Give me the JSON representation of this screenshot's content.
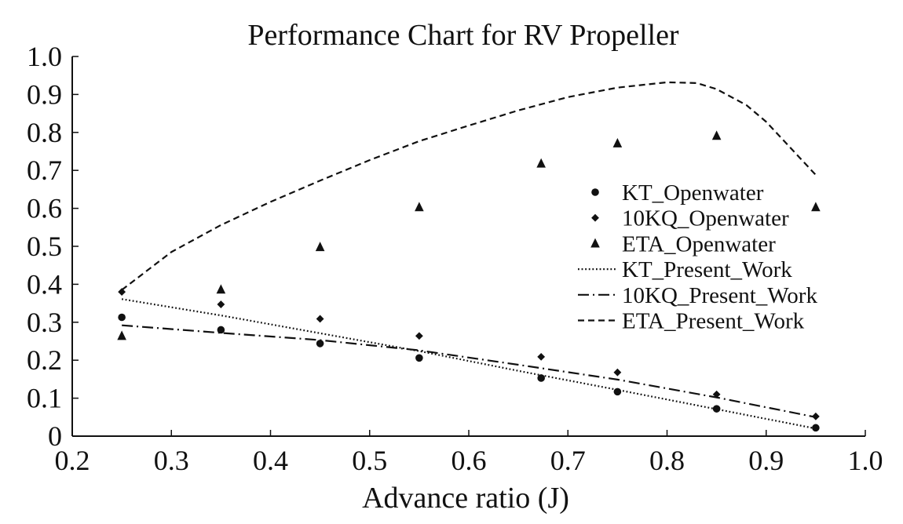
{
  "chart_data": {
    "type": "scatter",
    "title": "Performance Chart for RV Propeller",
    "xlabel": "Advance ratio (J)",
    "ylabel": "",
    "xlim": [
      0.2,
      1.0
    ],
    "ylim": [
      0.0,
      1.0
    ],
    "grid": false,
    "legend_position": "right",
    "x_ticks": [
      0.2,
      0.3,
      0.4,
      0.5,
      0.6,
      0.7,
      0.8,
      0.9,
      1.0
    ],
    "x_tick_labels": [
      "0.2",
      "0.3",
      "0.4",
      "0.5",
      "0.6",
      "0.7",
      "0.8",
      "0.9",
      "1.0"
    ],
    "y_ticks": [
      0.0,
      0.1,
      0.2,
      0.3,
      0.4,
      0.5,
      0.6,
      0.7,
      0.8,
      0.9,
      1.0
    ],
    "y_tick_labels": [
      "0",
      "0.1",
      "0.2",
      "0.3",
      "0.4",
      "0.5",
      "0.6",
      "0.7",
      "0.8",
      "0.9",
      "1.0"
    ],
    "series": [
      {
        "name": "KT_Openwater",
        "kind": "scatter",
        "marker": "circle",
        "x": [
          0.25,
          0.35,
          0.45,
          0.55,
          0.673,
          0.75,
          0.85,
          0.95
        ],
        "values": [
          0.313,
          0.28,
          0.244,
          0.206,
          0.153,
          0.117,
          0.072,
          0.022
        ]
      },
      {
        "name": "10KQ_Openwater",
        "kind": "scatter",
        "marker": "diamond",
        "x": [
          0.25,
          0.35,
          0.45,
          0.55,
          0.673,
          0.75,
          0.85,
          0.95
        ],
        "values": [
          0.38,
          0.347,
          0.309,
          0.264,
          0.209,
          0.168,
          0.11,
          0.052
        ]
      },
      {
        "name": "ETA_Openwater",
        "kind": "scatter",
        "marker": "triangle",
        "x": [
          0.25,
          0.35,
          0.45,
          0.55,
          0.673,
          0.75,
          0.85,
          0.95
        ],
        "values": [
          0.264,
          0.386,
          0.498,
          0.603,
          0.718,
          0.771,
          0.791,
          0.603
        ]
      },
      {
        "name": "KT_Present_Work",
        "kind": "line",
        "style": "dotted",
        "x": [
          0.25,
          0.35,
          0.45,
          0.55,
          0.65,
          0.75,
          0.85,
          0.95
        ],
        "values": [
          0.361,
          0.318,
          0.271,
          0.224,
          0.172,
          0.122,
          0.071,
          0.02
        ]
      },
      {
        "name": "10KQ_Present_Work",
        "kind": "line",
        "style": "dashdot",
        "x": [
          0.25,
          0.35,
          0.45,
          0.55,
          0.65,
          0.75,
          0.85,
          0.95
        ],
        "values": [
          0.292,
          0.272,
          0.253,
          0.226,
          0.188,
          0.149,
          0.102,
          0.05
        ]
      },
      {
        "name": "ETA_Present_Work",
        "kind": "line",
        "style": "dashed",
        "x": [
          0.25,
          0.3,
          0.35,
          0.4,
          0.45,
          0.5,
          0.55,
          0.6,
          0.65,
          0.7,
          0.75,
          0.8,
          0.83,
          0.85,
          0.88,
          0.9,
          0.95
        ],
        "values": [
          0.385,
          0.485,
          0.556,
          0.617,
          0.673,
          0.727,
          0.777,
          0.818,
          0.858,
          0.893,
          0.918,
          0.932,
          0.93,
          0.914,
          0.872,
          0.828,
          0.688
        ]
      }
    ]
  }
}
